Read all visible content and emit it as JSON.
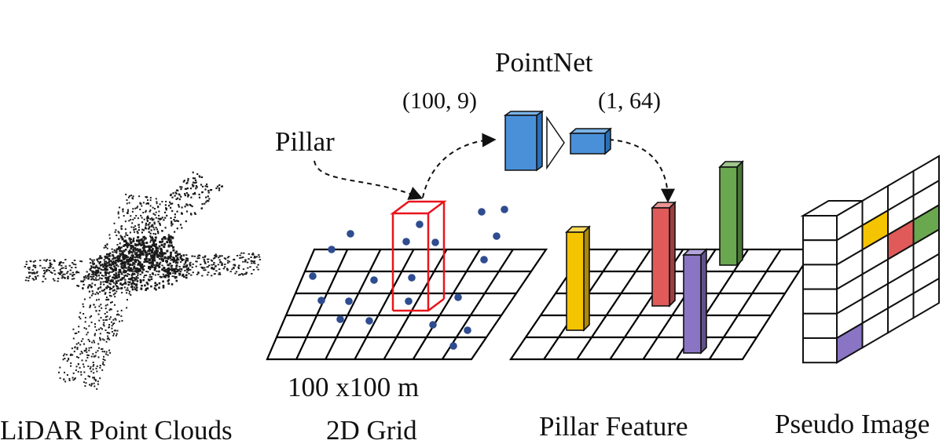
{
  "labels": {
    "pointnet": "PointNet",
    "input_shape": "(100, 9)",
    "output_shape": "(1, 64)",
    "pillar": "Pillar",
    "grid_size": "100 x100 m",
    "lidar": "LiDAR Point Clouds",
    "grid2d": "2D Grid",
    "pillar_feature": "Pillar Feature",
    "pseudo_image": "Pseudo Image"
  },
  "colors": {
    "grid_line": "#000000",
    "point": "#2e4c8f",
    "pillar_outline": "#e8141c",
    "pointnet_block": "#4a90d9",
    "yellow": "#f5c400",
    "red": "#e05a5a",
    "green": "#6aa84f",
    "purple": "#8a74c4"
  },
  "pillar_colors": [
    "yellow",
    "red",
    "green",
    "purple"
  ],
  "pseudo_image_cells": [
    {
      "col": 2,
      "row": 1,
      "color": "yellow"
    },
    {
      "col": 3,
      "row": 2,
      "color": "red"
    },
    {
      "col": 4,
      "row": 2,
      "color": "green"
    },
    {
      "col": 1,
      "row": 5,
      "color": "purple"
    }
  ]
}
